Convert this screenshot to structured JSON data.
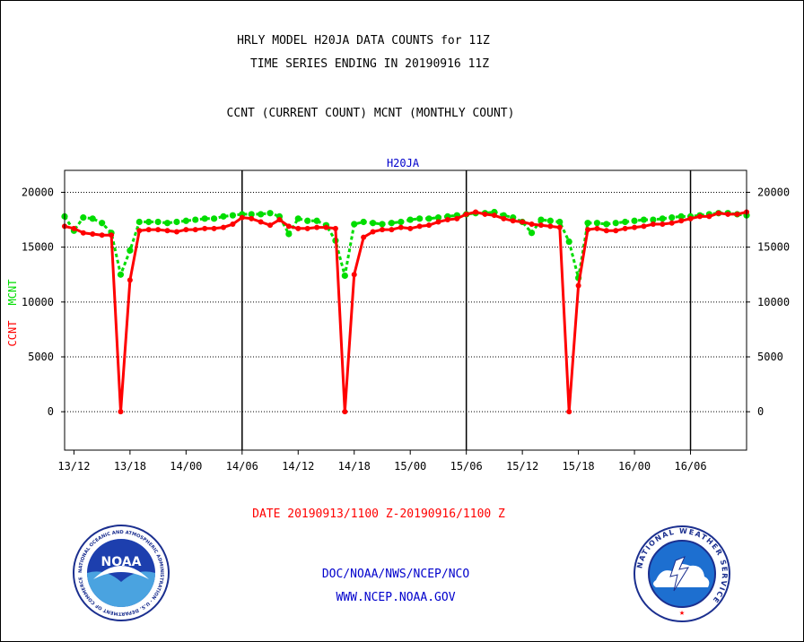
{
  "header": {
    "title_line1": "HRLY MODEL H20JA DATA COUNTS for 11Z",
    "title_line2": "TIME SERIES ENDING IN 20190916 11Z",
    "subtitle": "CCNT (CURRENT COUNT) MCNT (MONTHLY COUNT)"
  },
  "footer": {
    "date_range": "DATE 20190913/1100 Z-20190916/1100 Z",
    "org": "DOC/NOAA/NWS/NCEP/NCO",
    "url": "WWW.NCEP.NOAA.GOV",
    "left_logo_text": "NOAA",
    "left_logo_ring": "NATIONAL OCEANIC AND ATMOSPHERIC ADMINISTRATION · U.S. DEPARTMENT OF COMMERCE",
    "right_logo_ring": "NATIONAL WEATHER SERVICE"
  },
  "colors": {
    "ccnt": "#ff0000",
    "mcnt": "#00dd00",
    "title": "#000000",
    "plot_label": "#0000cc",
    "date_text": "#ff0000",
    "footer_text": "#0000cc"
  },
  "chart_data": {
    "type": "line",
    "title": "H20JA",
    "ylabel_parts": [
      "CCNT",
      "MCNT"
    ],
    "ylim": [
      -3500,
      22000
    ],
    "yticks": [
      0,
      5000,
      10000,
      15000,
      20000
    ],
    "ytick_labels": [
      "0",
      "5000",
      "10000",
      "15000",
      "20000"
    ],
    "x_range": [
      "13/11",
      "16/11"
    ],
    "xtick_labels": [
      "13/12",
      "13/18",
      "14/00",
      "14/06",
      "14/12",
      "14/18",
      "15/00",
      "15/06",
      "15/12",
      "15/18",
      "16/00",
      "16/06"
    ],
    "day_lines": [
      "14/06",
      "15/06",
      "16/06"
    ],
    "grid": true,
    "series": [
      {
        "name": "CCNT",
        "values": [
          16900,
          16700,
          16300,
          16200,
          16100,
          16100,
          0,
          12000,
          16500,
          16600,
          16600,
          16500,
          16400,
          16600,
          16600,
          16700,
          16700,
          16800,
          17100,
          17700,
          17600,
          17300,
          17000,
          17500,
          16900,
          16700,
          16700,
          16800,
          16800,
          16700,
          0,
          12500,
          15900,
          16400,
          16600,
          16600,
          16800,
          16700,
          16900,
          17000,
          17300,
          17500,
          17600,
          18000,
          18200,
          18000,
          17900,
          17600,
          17400,
          17300,
          17100,
          17000,
          16900,
          16800,
          0,
          11500,
          16600,
          16700,
          16500,
          16500,
          16700,
          16800,
          16900,
          17100,
          17100,
          17200,
          17400,
          17600,
          17800,
          17800,
          18100,
          18000,
          18000,
          18200
        ]
      },
      {
        "name": "MCNT",
        "values": [
          17800,
          16500,
          17700,
          17600,
          17200,
          16300,
          12500,
          14700,
          17300,
          17300,
          17300,
          17200,
          17300,
          17400,
          17500,
          17600,
          17600,
          17800,
          17900,
          18000,
          18000,
          18000,
          18100,
          17800,
          16200,
          17600,
          17400,
          17400,
          17000,
          15600,
          12400,
          17100,
          17300,
          17200,
          17100,
          17200,
          17300,
          17500,
          17600,
          17600,
          17700,
          17800,
          17900,
          18000,
          18100,
          18100,
          18200,
          17900,
          17700,
          17300,
          16300,
          17500,
          17400,
          17300,
          15500,
          12200,
          17200,
          17200,
          17100,
          17200,
          17300,
          17400,
          17500,
          17500,
          17600,
          17700,
          17800,
          17800,
          17900,
          18000,
          18100,
          18100,
          18000,
          17900
        ]
      }
    ]
  }
}
